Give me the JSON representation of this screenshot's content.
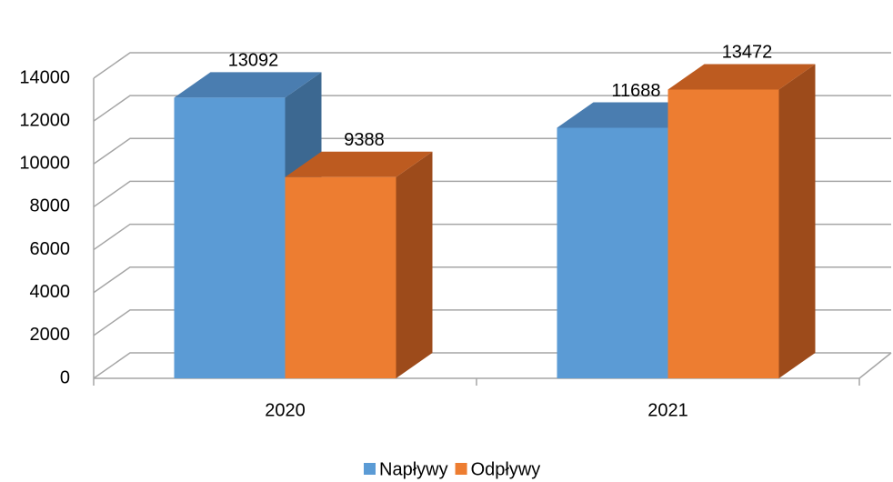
{
  "chart_data": {
    "type": "bar3d",
    "categories": [
      "2020",
      "2021"
    ],
    "series": [
      {
        "name": "Napływy",
        "color": "#5b9bd5",
        "top": "#4a7db0",
        "side": "#3c6891",
        "values": [
          13092,
          11688
        ]
      },
      {
        "name": "Odpływy",
        "color": "#ed7d31",
        "top": "#bd5b20",
        "side": "#9d4b1b",
        "values": [
          9388,
          13472
        ]
      }
    ],
    "ylim": [
      0,
      14000
    ],
    "yticks": [
      0,
      2000,
      4000,
      6000,
      8000,
      10000,
      12000,
      14000
    ],
    "grid": true,
    "legend": "bottom"
  }
}
